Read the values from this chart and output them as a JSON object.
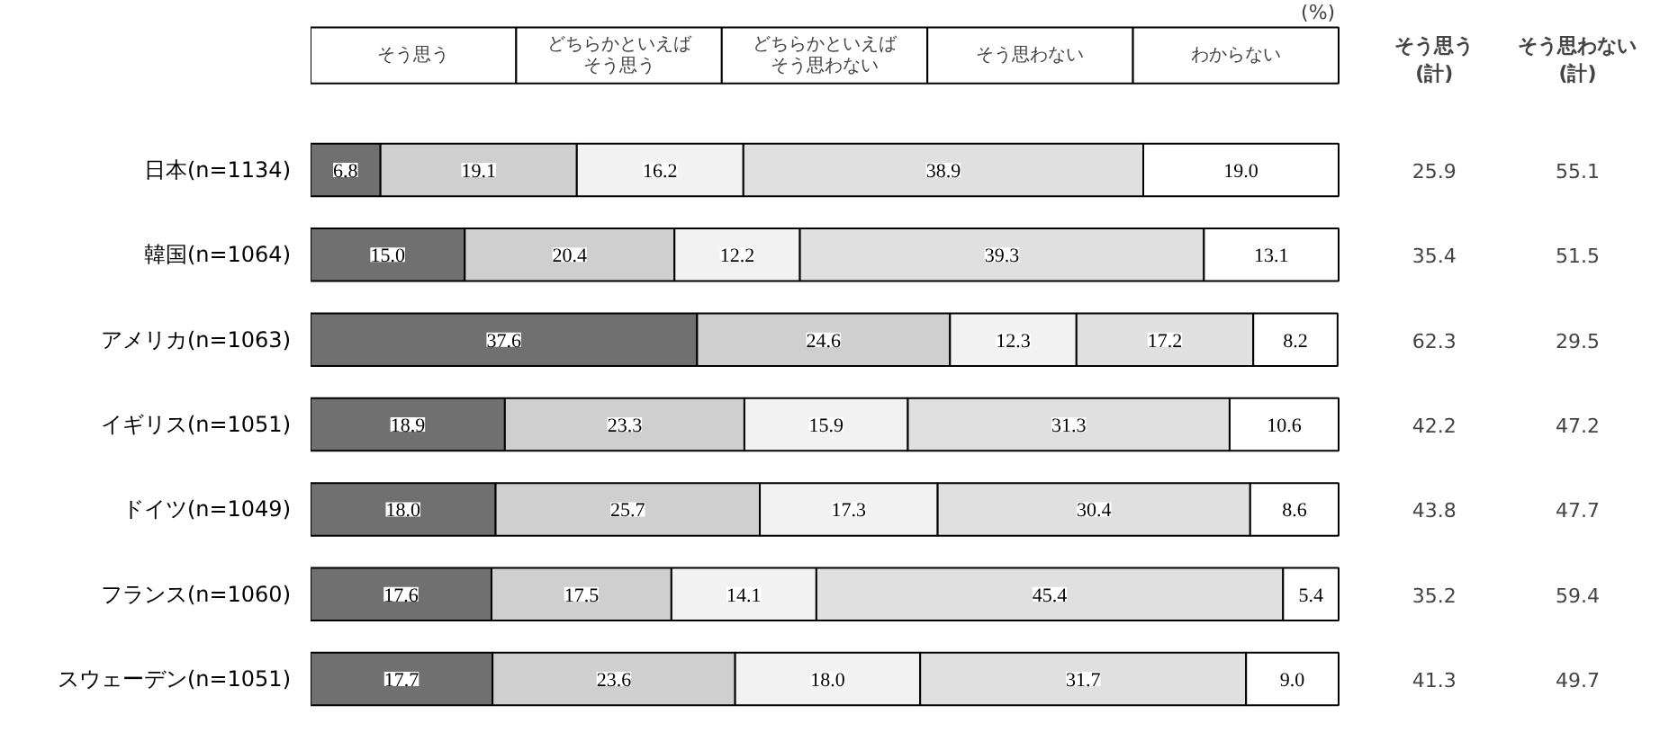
{
  "chart_data": {
    "type": "bar",
    "orientation": "horizontal",
    "stacked": true,
    "legend": "top",
    "grid": false,
    "categories": [
      "日本(n=1134)",
      "韓国(n=1064)",
      "アメリカ(n=1063)",
      "イギリス(n=1051)",
      "ドイツ(n=1049)",
      "フランス(n=1060)",
      "スウェーデン(n=1051)"
    ],
    "series": [
      {
        "name": "そう思う",
        "color": "#707070",
        "values": [
          6.8,
          15.0,
          37.6,
          18.9,
          18.0,
          17.6,
          17.7
        ],
        "value_labels": [
          "6.8",
          "15.0",
          "37.6",
          "18.9",
          "18.0",
          "17.6",
          "17.7"
        ]
      },
      {
        "name": "どちらかといえばそう思う",
        "color": "#cfcfcf",
        "values": [
          19.1,
          20.4,
          24.6,
          23.3,
          25.7,
          17.5,
          23.6
        ],
        "value_labels": [
          "19.1",
          "20.4",
          "24.6",
          "23.3",
          "25.7",
          "17.5",
          "23.6"
        ]
      },
      {
        "name": "どちらかといえばそう思わない",
        "color": "#f2f2f2",
        "values": [
          16.2,
          12.2,
          12.3,
          15.9,
          17.3,
          14.1,
          18.0
        ],
        "value_labels": [
          "16.2",
          "12.2",
          "12.3",
          "15.9",
          "17.3",
          "14.1",
          "18.0"
        ]
      },
      {
        "name": "そう思わない",
        "color": "#e0e0e0",
        "values": [
          38.9,
          39.3,
          17.2,
          31.3,
          30.4,
          45.4,
          31.7
        ],
        "value_labels": [
          "38.9",
          "39.3",
          "17.2",
          "31.3",
          "30.4",
          "45.4",
          "31.7"
        ]
      },
      {
        "name": "わからない",
        "color": "#ffffff",
        "values": [
          19.0,
          13.1,
          8.2,
          10.6,
          8.6,
          5.4,
          9.0
        ],
        "value_labels": [
          "19.0",
          "13.1",
          "8.2",
          "10.6",
          "8.6",
          "5.4",
          "9.0"
        ]
      }
    ],
    "annotations": [
      "(%)",
      "そう思う(計)",
      "そう思わない(計)",
      "25.9",
      "55.1",
      "35.4",
      "51.5",
      "62.3",
      "29.5",
      "42.2",
      "47.2",
      "43.8",
      "47.7",
      "35.2",
      "59.4",
      "41.3",
      "49.7"
    ]
  }
}
